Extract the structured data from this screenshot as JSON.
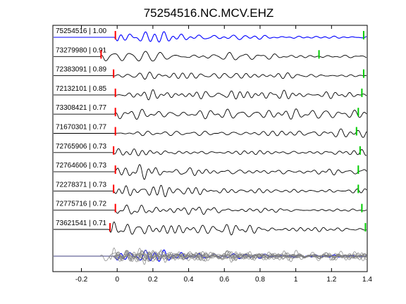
{
  "chart_data": {
    "type": "line",
    "title": "75254516.NC.MCV.EHZ",
    "xlabel": "",
    "ylabel": "",
    "xlim": [
      -0.36,
      1.4
    ],
    "xticks": [
      -0.2,
      0,
      0.2,
      0.4,
      0.6,
      0.8,
      1,
      1.2,
      1.4
    ],
    "xtick_labels": [
      "-0.2",
      "0",
      "0.2",
      "0.4",
      "0.6",
      "0.8",
      "1",
      "1.2",
      "1.4"
    ],
    "grid": false,
    "reference_color": "#0000ff",
    "trace_color": "#000000",
    "stack_color": "#808080",
    "p_pick_color": "#ff0000",
    "s_pick_color": "#00cc00",
    "traces": [
      {
        "label": "75254516 | 1.00",
        "p_pick": -0.01,
        "s_pick": 1.38,
        "reference": true
      },
      {
        "label": "73279980 | 0.91",
        "p_pick": -0.09,
        "s_pick": 1.13
      },
      {
        "label": "72383091 | 0.89",
        "p_pick": -0.02,
        "s_pick": 1.38
      },
      {
        "label": "72132101 | 0.85",
        "p_pick": -0.01,
        "s_pick": 1.37
      },
      {
        "label": "73308421 | 0.77",
        "p_pick": -0.01,
        "s_pick": 1.35
      },
      {
        "label": "71670301 | 0.77",
        "p_pick": -0.01,
        "s_pick": 1.34
      },
      {
        "label": "72765906 | 0.73",
        "p_pick": -0.02,
        "s_pick": 1.36
      },
      {
        "label": "72764606 | 0.73",
        "p_pick": -0.01,
        "s_pick": 1.35
      },
      {
        "label": "72278371 | 0.73",
        "p_pick": -0.02,
        "s_pick": 1.35
      },
      {
        "label": "72775716 | 0.72",
        "p_pick": -0.01,
        "s_pick": 1.37
      },
      {
        "label": "73621541 | 0.71",
        "p_pick": -0.04,
        "s_pick": 1.39
      }
    ]
  }
}
